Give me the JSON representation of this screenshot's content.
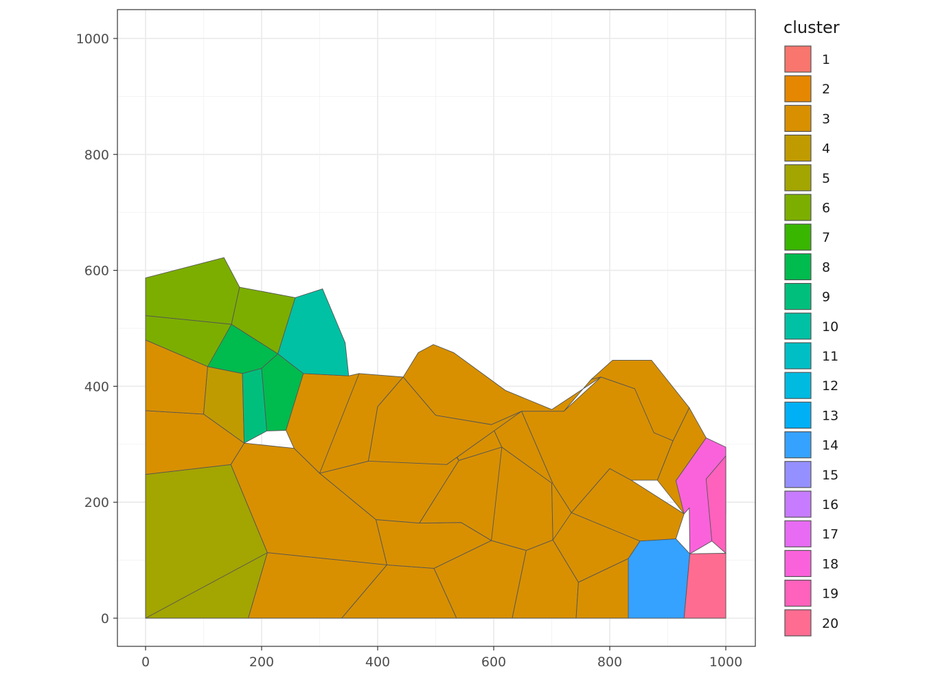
{
  "chart_data": {
    "type": "voronoi",
    "title": "",
    "xlabel": "",
    "ylabel": "",
    "xlim": [
      -48,
      1048
    ],
    "ylim": [
      -48,
      1048
    ],
    "x_ticks": [
      0,
      200,
      400,
      600,
      800,
      1000
    ],
    "y_ticks": [
      0,
      200,
      400,
      600,
      800,
      1000
    ],
    "x_tick_labels": [
      "0",
      "200",
      "400",
      "600",
      "800",
      "1000"
    ],
    "y_tick_labels": [
      "0",
      "200",
      "400",
      "600",
      "800",
      "1000"
    ],
    "grid": true,
    "legend": {
      "title": "cluster",
      "placement": "right",
      "entries": [
        {
          "label": "1",
          "color": "#F8766D"
        },
        {
          "label": "2",
          "color": "#E58700"
        },
        {
          "label": "3",
          "color": "#D89000"
        },
        {
          "label": "4",
          "color": "#C09B00"
        },
        {
          "label": "5",
          "color": "#A3A500"
        },
        {
          "label": "6",
          "color": "#7CAE00"
        },
        {
          "label": "7",
          "color": "#39B600"
        },
        {
          "label": "8",
          "color": "#00BB4E"
        },
        {
          "label": "9",
          "color": "#00BF7D"
        },
        {
          "label": "10",
          "color": "#00C1A3"
        },
        {
          "label": "11",
          "color": "#00BFC4"
        },
        {
          "label": "12",
          "color": "#00BAE0"
        },
        {
          "label": "13",
          "color": "#00B0F6"
        },
        {
          "label": "14",
          "color": "#35A2FF"
        },
        {
          "label": "15",
          "color": "#9590FF"
        },
        {
          "label": "16",
          "color": "#C77CFF"
        },
        {
          "label": "17",
          "color": "#E76BF3"
        },
        {
          "label": "18",
          "color": "#FA62DB"
        },
        {
          "label": "19",
          "color": "#FF62BC"
        },
        {
          "label": "20",
          "color": "#FF6C91"
        }
      ]
    },
    "cells": [
      {
        "cluster": "5",
        "points": [
          [
            0,
            0
          ],
          [
            177,
            0
          ],
          [
            210,
            113
          ],
          [
            147,
            265
          ],
          [
            0,
            248
          ]
        ]
      },
      {
        "cluster": "3",
        "points": [
          [
            177,
            0
          ],
          [
            338,
            0
          ],
          [
            416,
            92
          ],
          [
            210,
            113
          ]
        ]
      },
      {
        "cluster": "3",
        "points": [
          [
            338,
            0
          ],
          [
            536,
            0
          ],
          [
            497,
            86
          ],
          [
            416,
            92
          ]
        ]
      },
      {
        "cluster": "3",
        "points": [
          [
            536,
            0
          ],
          [
            632,
            0
          ],
          [
            656,
            117
          ],
          [
            596,
            134
          ],
          [
            497,
            86
          ]
        ]
      },
      {
        "cluster": "3",
        "points": [
          [
            632,
            0
          ],
          [
            742,
            0
          ],
          [
            746,
            62
          ],
          [
            702,
            135
          ],
          [
            656,
            117
          ]
        ]
      },
      {
        "cluster": "3",
        "points": [
          [
            742,
            0
          ],
          [
            832,
            0
          ],
          [
            832,
            103
          ],
          [
            746,
            62
          ]
        ]
      },
      {
        "cluster": "14",
        "points": [
          [
            832,
            0
          ],
          [
            928,
            0
          ],
          [
            938,
            111
          ],
          [
            914,
            137
          ],
          [
            852,
            133
          ],
          [
            832,
            103
          ]
        ]
      },
      {
        "cluster": "20",
        "points": [
          [
            928,
            0
          ],
          [
            1000,
            0
          ],
          [
            1000,
            112
          ],
          [
            938,
            111
          ]
        ]
      },
      {
        "cluster": "5",
        "points": [
          [
            0,
            248
          ],
          [
            147,
            265
          ],
          [
            210,
            113
          ],
          [
            0,
            0
          ]
        ]
      },
      {
        "cluster": "3",
        "points": [
          [
            210,
            113
          ],
          [
            416,
            92
          ],
          [
            397,
            170
          ],
          [
            300,
            250
          ],
          [
            256,
            293
          ],
          [
            170,
            302
          ],
          [
            147,
            265
          ]
        ]
      },
      {
        "cluster": "3",
        "points": [
          [
            416,
            92
          ],
          [
            497,
            86
          ],
          [
            596,
            134
          ],
          [
            544,
            165
          ],
          [
            397,
            170
          ]
        ]
      },
      {
        "cluster": "3",
        "points": [
          [
            544,
            165
          ],
          [
            596,
            134
          ],
          [
            656,
            117
          ],
          [
            702,
            135
          ],
          [
            700,
            233
          ],
          [
            614,
            295
          ],
          [
            540,
            272
          ],
          [
            472,
            164
          ]
        ]
      },
      {
        "cluster": "3",
        "points": [
          [
            397,
            170
          ],
          [
            472,
            164
          ],
          [
            540,
            272
          ],
          [
            524,
            293
          ],
          [
            500,
            350
          ],
          [
            384,
            271
          ],
          [
            300,
            250
          ]
        ]
      },
      {
        "cluster": "3",
        "points": [
          [
            500,
            350
          ],
          [
            540,
            272
          ],
          [
            614,
            295
          ],
          [
            596,
            334
          ],
          [
            648,
            357
          ],
          [
            519,
            265
          ]
        ]
      },
      {
        "cluster": "3",
        "points": [
          [
            472,
            164
          ],
          [
            544,
            165
          ],
          [
            596,
            134
          ],
          [
            614,
            295
          ],
          [
            540,
            272
          ]
        ]
      },
      {
        "cluster": "3",
        "points": [
          [
            614,
            295
          ],
          [
            700,
            233
          ],
          [
            702,
            135
          ],
          [
            746,
            62
          ],
          [
            832,
            103
          ],
          [
            852,
            133
          ],
          [
            734,
            182
          ],
          [
            702,
            232
          ],
          [
            648,
            357
          ],
          [
            596,
            334
          ]
        ]
      },
      {
        "cluster": "3",
        "points": [
          [
            702,
            135
          ],
          [
            746,
            62
          ],
          [
            832,
            103
          ],
          [
            852,
            133
          ],
          [
            800,
            258
          ],
          [
            734,
            182
          ]
        ]
      },
      {
        "cluster": "3",
        "points": [
          [
            734,
            182
          ],
          [
            852,
            133
          ],
          [
            914,
            137
          ],
          [
            928,
            180
          ],
          [
            837,
            238
          ],
          [
            800,
            258
          ]
        ]
      },
      {
        "cluster": "3",
        "points": [
          [
            648,
            357
          ],
          [
            702,
            232
          ],
          [
            734,
            182
          ],
          [
            800,
            258
          ],
          [
            837,
            238
          ],
          [
            882,
            238
          ],
          [
            909,
            306
          ],
          [
            843,
            396
          ],
          [
            785,
            416
          ],
          [
            721,
            357
          ]
        ]
      },
      {
        "cluster": "3",
        "points": [
          [
            909,
            306
          ],
          [
            882,
            238
          ],
          [
            928,
            180
          ],
          [
            937,
            190
          ],
          [
            914,
            237
          ],
          [
            966,
            311
          ],
          [
            937,
            363
          ]
        ]
      },
      {
        "cluster": "3",
        "points": [
          [
            785,
            416
          ],
          [
            843,
            396
          ],
          [
            876,
            320
          ],
          [
            909,
            306
          ],
          [
            937,
            363
          ],
          [
            872,
            445
          ],
          [
            805,
            445
          ],
          [
            768,
            412
          ]
        ]
      },
      {
        "cluster": "18",
        "points": [
          [
            914,
            237
          ],
          [
            928,
            180
          ],
          [
            937,
            190
          ],
          [
            938,
            111
          ],
          [
            976,
            133
          ],
          [
            1000,
            180
          ],
          [
            1000,
            295
          ],
          [
            966,
            311
          ]
        ]
      },
      {
        "cluster": "19",
        "points": [
          [
            976,
            133
          ],
          [
            1000,
            112
          ],
          [
            1000,
            280
          ],
          [
            966,
            240
          ]
        ]
      },
      {
        "cluster": "3",
        "points": [
          [
            0,
            248
          ],
          [
            147,
            265
          ],
          [
            170,
            302
          ],
          [
            100,
            352
          ],
          [
            0,
            358
          ]
        ]
      },
      {
        "cluster": "3",
        "points": [
          [
            0,
            358
          ],
          [
            100,
            352
          ],
          [
            107,
            434
          ],
          [
            0,
            480
          ]
        ]
      },
      {
        "cluster": "4",
        "points": [
          [
            100,
            352
          ],
          [
            170,
            302
          ],
          [
            167,
            422
          ],
          [
            107,
            434
          ]
        ]
      },
      {
        "cluster": "9",
        "points": [
          [
            170,
            302
          ],
          [
            209,
            323
          ],
          [
            200,
            431
          ],
          [
            167,
            422
          ]
        ]
      },
      {
        "cluster": "8",
        "points": [
          [
            209,
            323
          ],
          [
            242,
            324
          ],
          [
            272,
            422
          ],
          [
            228,
            456
          ],
          [
            200,
            431
          ]
        ]
      },
      {
        "cluster": "3",
        "points": [
          [
            242,
            324
          ],
          [
            256,
            293
          ],
          [
            300,
            250
          ],
          [
            384,
            271
          ],
          [
            368,
            422
          ],
          [
            350,
            418
          ],
          [
            272,
            422
          ]
        ]
      },
      {
        "cluster": "3",
        "points": [
          [
            300,
            250
          ],
          [
            384,
            271
          ],
          [
            400,
            365
          ],
          [
            444,
            416
          ],
          [
            368,
            422
          ]
        ]
      },
      {
        "cluster": "3",
        "points": [
          [
            384,
            271
          ],
          [
            519,
            265
          ],
          [
            648,
            357
          ],
          [
            596,
            334
          ],
          [
            500,
            350
          ],
          [
            444,
            416
          ],
          [
            400,
            365
          ]
        ]
      },
      {
        "cluster": "3",
        "points": [
          [
            444,
            416
          ],
          [
            500,
            350
          ],
          [
            596,
            334
          ],
          [
            648,
            357
          ],
          [
            721,
            357
          ],
          [
            768,
            412
          ],
          [
            785,
            416
          ],
          [
            700,
            360
          ],
          [
            620,
            393
          ],
          [
            531,
            458
          ],
          [
            496,
            472
          ],
          [
            470,
            458
          ]
        ]
      },
      {
        "cluster": "6",
        "points": [
          [
            0,
            480
          ],
          [
            107,
            434
          ],
          [
            167,
            422
          ],
          [
            148,
            507
          ],
          [
            0,
            522
          ]
        ]
      },
      {
        "cluster": "6",
        "points": [
          [
            0,
            522
          ],
          [
            148,
            507
          ],
          [
            162,
            571
          ],
          [
            135,
            622
          ],
          [
            0,
            587
          ]
        ]
      },
      {
        "cluster": "8",
        "points": [
          [
            107,
            434
          ],
          [
            167,
            422
          ],
          [
            200,
            431
          ],
          [
            228,
            456
          ],
          [
            148,
            507
          ]
        ]
      },
      {
        "cluster": "6",
        "points": [
          [
            148,
            507
          ],
          [
            228,
            456
          ],
          [
            258,
            553
          ],
          [
            162,
            571
          ]
        ]
      },
      {
        "cluster": "10",
        "points": [
          [
            228,
            456
          ],
          [
            272,
            422
          ],
          [
            350,
            418
          ],
          [
            344,
            475
          ],
          [
            305,
            568
          ],
          [
            258,
            553
          ]
        ]
      }
    ]
  }
}
